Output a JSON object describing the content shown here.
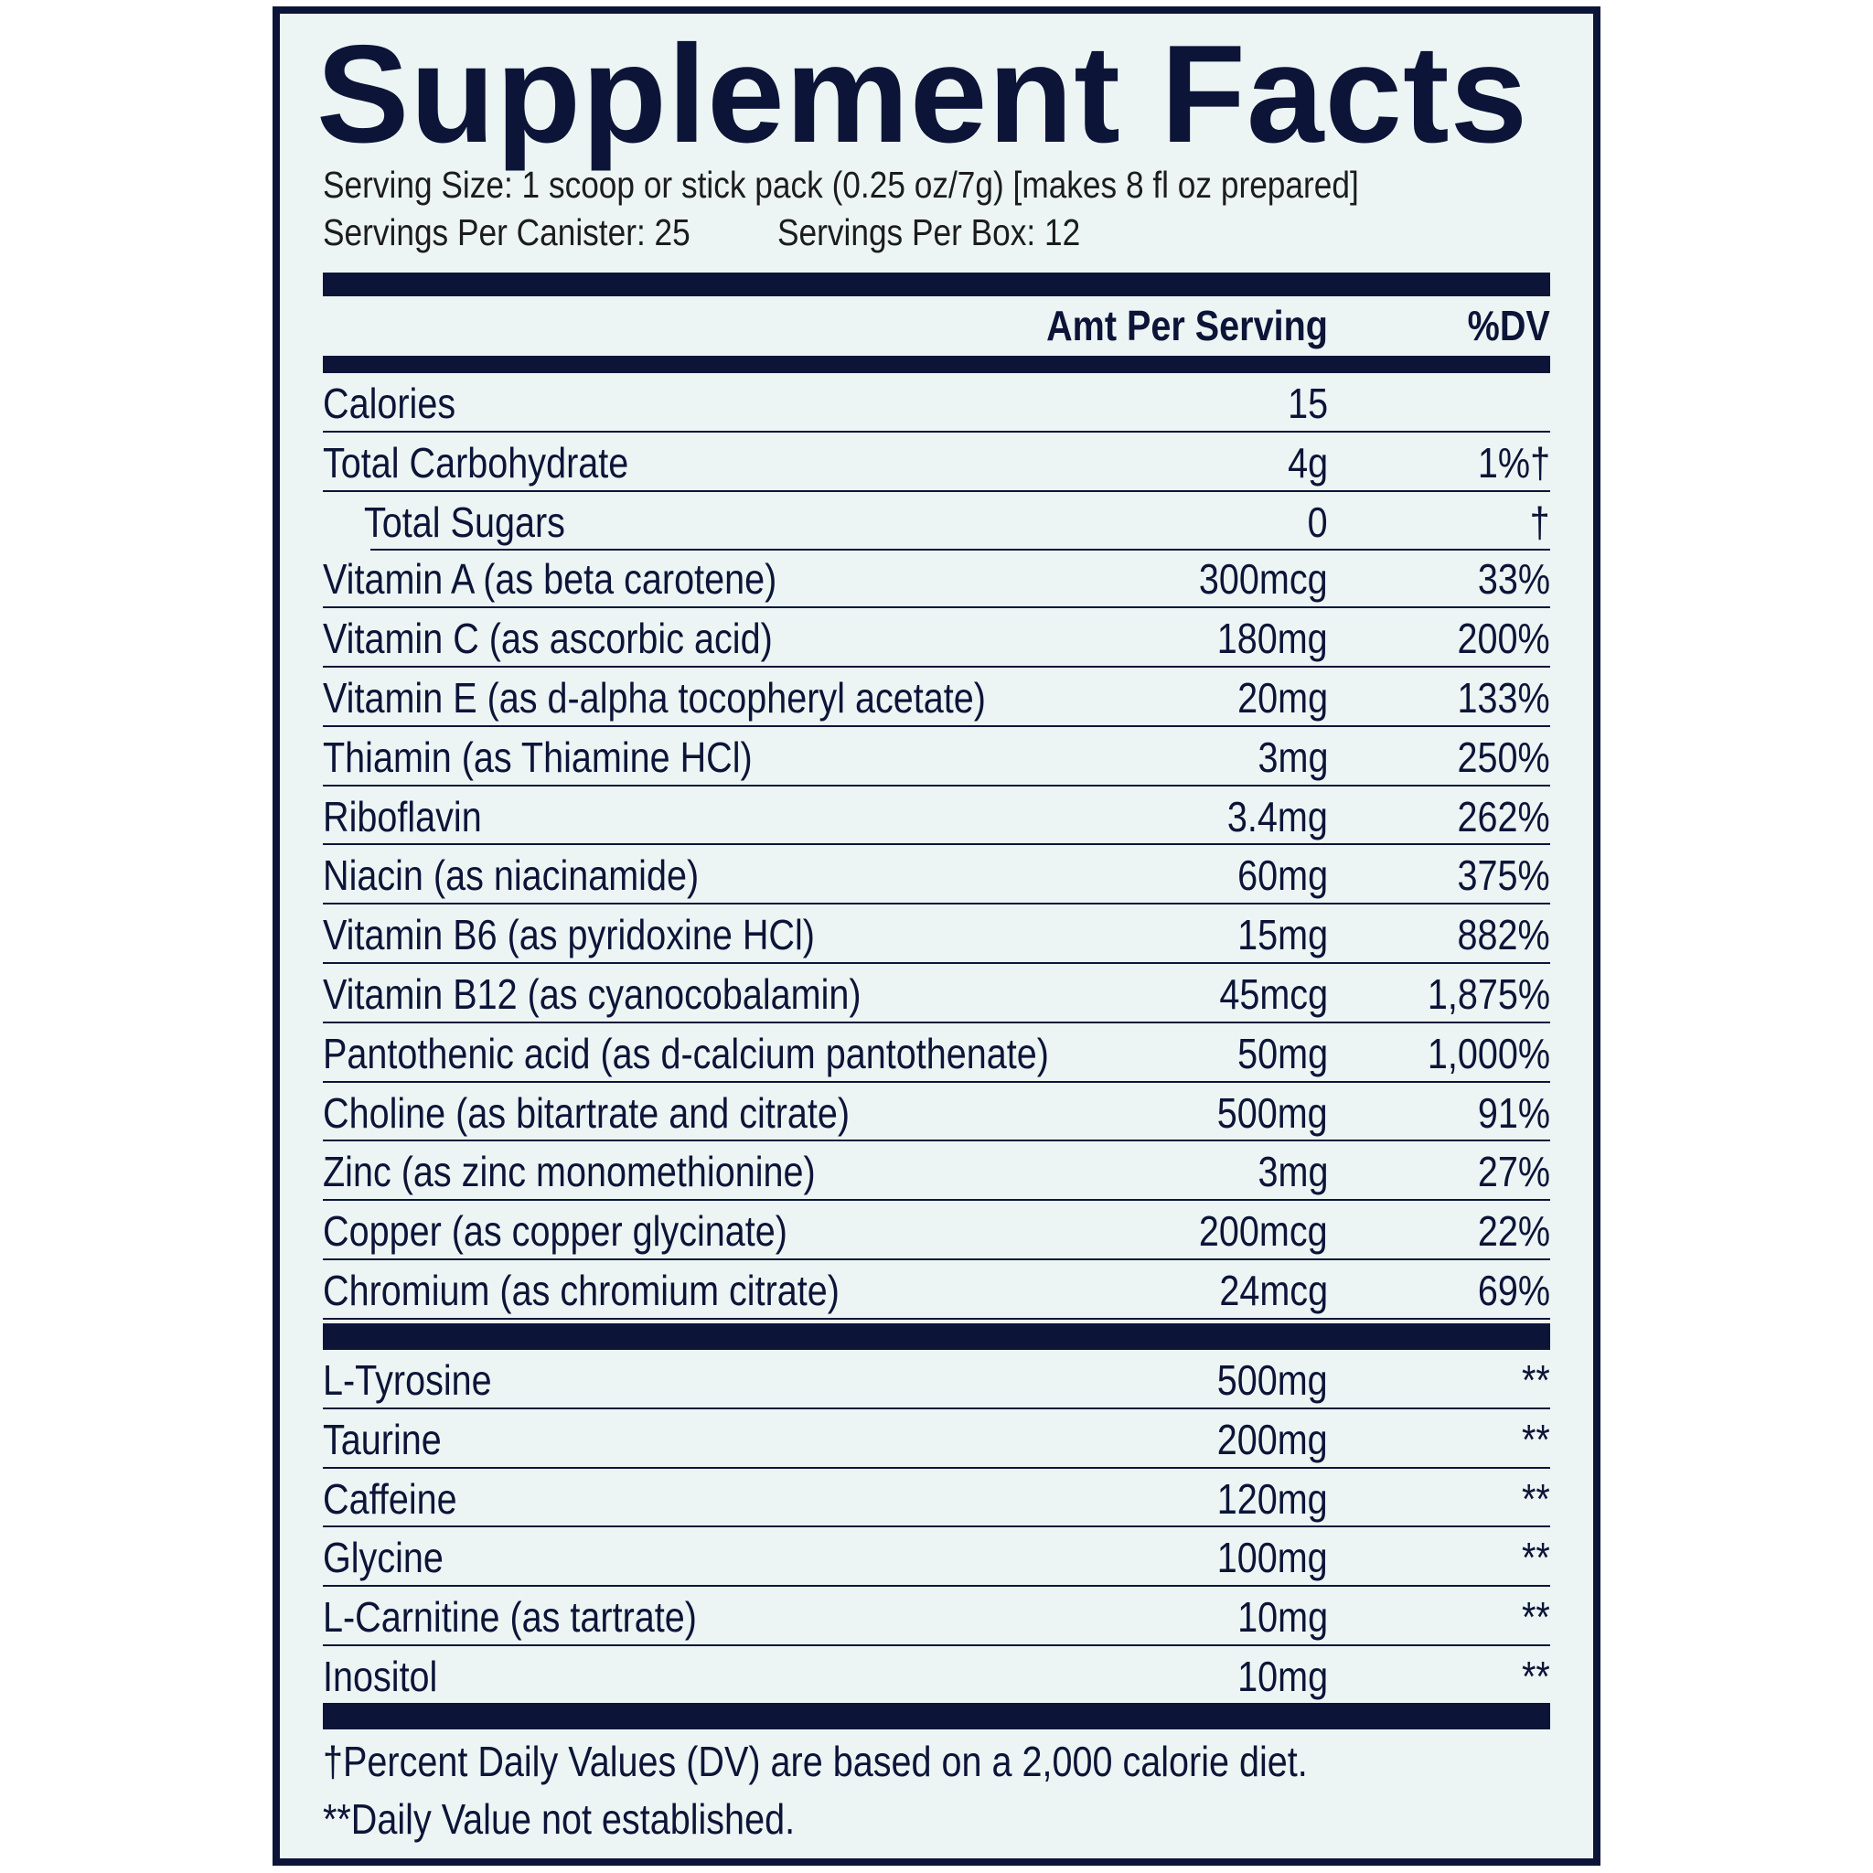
{
  "title": "Supplement Facts",
  "serving_size": "Serving Size: 1 scoop or stick pack (0.25 oz/7g) [makes 8 fl oz prepared]",
  "servings_per_canister": "Servings Per Canister: 25",
  "servings_per_box": "Servings Per Box: 12",
  "header": {
    "amount": "Amt Per Serving",
    "dv": "%DV"
  },
  "colors": {
    "navy": "#0c1538",
    "background": "#edf5f4"
  },
  "rows": [
    {
      "name": "Calories",
      "amount": "15",
      "dv": ""
    },
    {
      "name": "Total Carbohydrate",
      "amount": "4g",
      "dv": "1%†"
    },
    {
      "name": "Total Sugars",
      "amount": "0",
      "dv": "†",
      "indent": true
    },
    {
      "name": "Vitamin A (as beta carotene)",
      "amount": "300mcg",
      "dv": "33%"
    },
    {
      "name": "Vitamin C (as ascorbic acid)",
      "amount": "180mg",
      "dv": "200%"
    },
    {
      "name": "Vitamin E (as d-alpha tocopheryl acetate)",
      "amount": "20mg",
      "dv": "133%"
    },
    {
      "name": "Thiamin (as Thiamine HCl)",
      "amount": "3mg",
      "dv": "250%"
    },
    {
      "name": "Riboflavin",
      "amount": "3.4mg",
      "dv": "262%"
    },
    {
      "name": "Niacin (as niacinamide)",
      "amount": "60mg",
      "dv": "375%"
    },
    {
      "name": "Vitamin B6 (as pyridoxine HCl)",
      "amount": "15mg",
      "dv": "882%"
    },
    {
      "name": "Vitamin B12 (as cyanocobalamin)",
      "amount": "45mcg",
      "dv": "1,875%"
    },
    {
      "name": "Pantothenic acid (as d-calcium pantothenate)",
      "amount": "50mg",
      "dv": "1,000%"
    },
    {
      "name": "Choline (as bitartrate and citrate)",
      "amount": "500mg",
      "dv": "91%"
    },
    {
      "name": "Zinc (as zinc monomethionine)",
      "amount": "3mg",
      "dv": "27%"
    },
    {
      "name": "Copper (as copper glycinate)",
      "amount": "200mcg",
      "dv": "22%"
    },
    {
      "name": "Chromium (as chromium citrate)",
      "amount": "24mcg",
      "dv": "69%"
    }
  ],
  "other_rows": [
    {
      "name": "L-Tyrosine",
      "amount": "500mg",
      "dv": "**"
    },
    {
      "name": "Taurine",
      "amount": "200mg",
      "dv": "**"
    },
    {
      "name": "Caffeine",
      "amount": "120mg",
      "dv": "**"
    },
    {
      "name": "Glycine",
      "amount": "100mg",
      "dv": "**"
    },
    {
      "name": "L-Carnitine (as tartrate)",
      "amount": "10mg",
      "dv": "**"
    },
    {
      "name": "Inositol",
      "amount": "10mg",
      "dv": "**"
    }
  ],
  "footnotes": [
    "†Percent Daily Values (DV) are based on a 2,000 calorie diet.",
    "**Daily Value not established."
  ]
}
